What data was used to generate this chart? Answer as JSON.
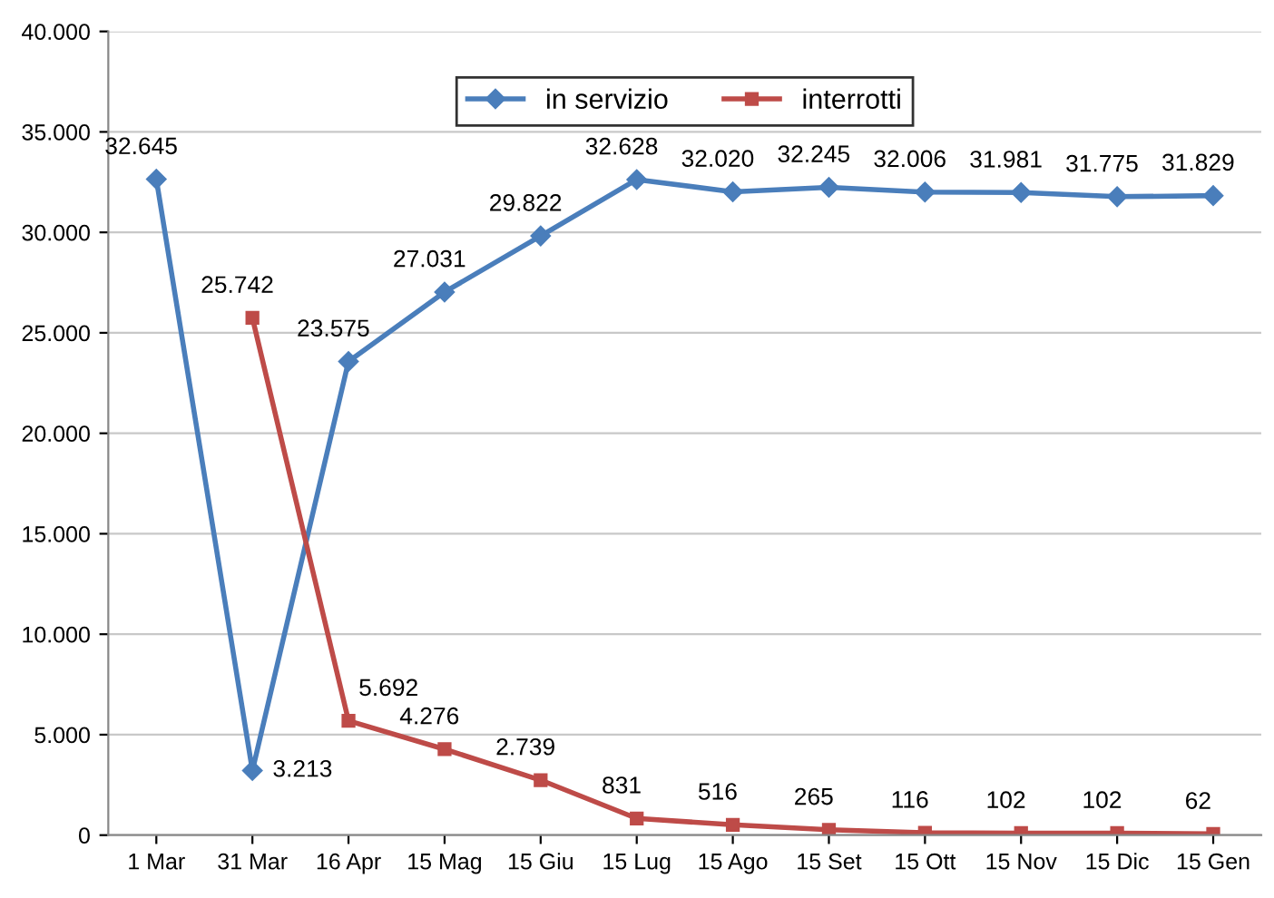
{
  "chart_data": {
    "type": "line",
    "categories": [
      "1 Mar",
      "31 Mar",
      "16 Apr",
      "15 Mag",
      "15 Giu",
      "15 Lug",
      "15 Ago",
      "15 Set",
      "15 Ott",
      "15 Nov",
      "15 Dic",
      "15 Gen"
    ],
    "series": [
      {
        "name": "in servizio",
        "color": "#4a7ebb",
        "marker": "diamond",
        "values": [
          32645,
          3213,
          23575,
          27031,
          29822,
          32628,
          32020,
          32245,
          32006,
          31981,
          31775,
          31829
        ],
        "value_labels": [
          "32.645",
          "3.213",
          "23.575",
          "27.031",
          "29.822",
          "32.628",
          "32.020",
          "32.245",
          "32.006",
          "31.981",
          "31.775",
          "31.829"
        ]
      },
      {
        "name": "interrotti",
        "color": "#be4b48",
        "marker": "square",
        "values": [
          null,
          25742,
          5692,
          4276,
          2739,
          831,
          516,
          265,
          116,
          102,
          102,
          62
        ],
        "value_labels": [
          null,
          "25.742",
          "5.692",
          "4.276",
          "2.739",
          "831",
          "516",
          "265",
          "116",
          "102",
          "102",
          "62"
        ]
      }
    ],
    "ylim": [
      0,
      40000
    ],
    "yticks": [
      {
        "value": 0,
        "label": "0"
      },
      {
        "value": 5000,
        "label": "5.000"
      },
      {
        "value": 10000,
        "label": "10.000"
      },
      {
        "value": 15000,
        "label": "15.000"
      },
      {
        "value": 20000,
        "label": "20.000"
      },
      {
        "value": 25000,
        "label": "25.000"
      },
      {
        "value": 30000,
        "label": "30.000"
      },
      {
        "value": 35000,
        "label": "35.000"
      },
      {
        "value": 40000,
        "label": "40.000"
      }
    ],
    "grid": "y",
    "legend": "top",
    "line_style": "solid"
  }
}
